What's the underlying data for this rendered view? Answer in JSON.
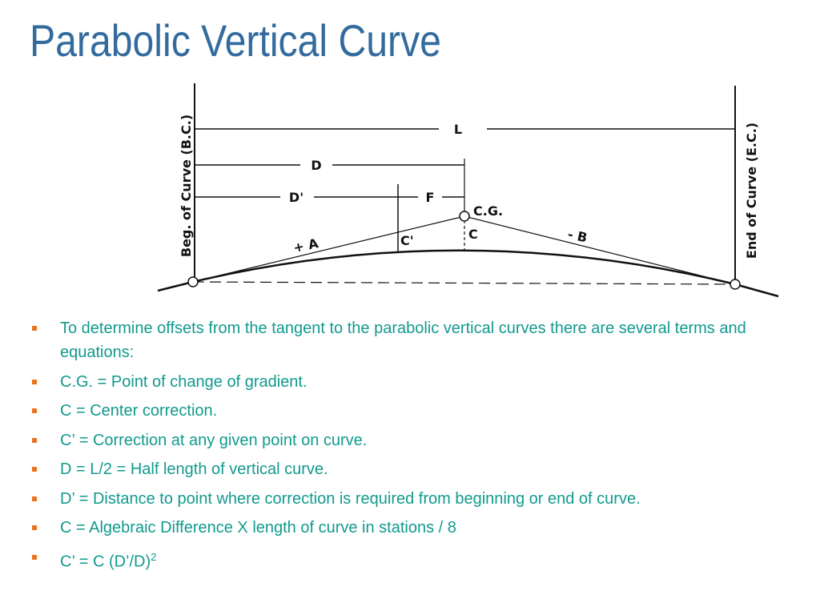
{
  "title": "Parabolic Vertical Curve",
  "diagram": {
    "labels": {
      "bc": "Beg. of Curve (B.C.)",
      "ec": "End of Curve (E.C.)",
      "l": "L",
      "d": "D",
      "d_prime": "D'",
      "f": "F",
      "cg": "C.G.",
      "c": "C",
      "c_prime": "C'",
      "plus_a": "+ A",
      "minus_b": "- B"
    }
  },
  "bullets": [
    {
      "text": "To determine offsets from the tangent to the parabolic vertical curves there are several terms and equations:"
    },
    {
      "text": "C.G. = Point of change of gradient."
    },
    {
      "text": "C = Center correction."
    },
    {
      "text": "C’ = Correction at any given point on curve."
    },
    {
      "text": "D = L/2 = Half length of vertical curve."
    },
    {
      "text": "D’ = Distance to point where correction is required from beginning or end of curve."
    },
    {
      "text": "C = Algebraic Difference X length of curve in stations / 8"
    },
    {
      "text": "C’ = C (D’/D)",
      "sup": "2"
    }
  ]
}
